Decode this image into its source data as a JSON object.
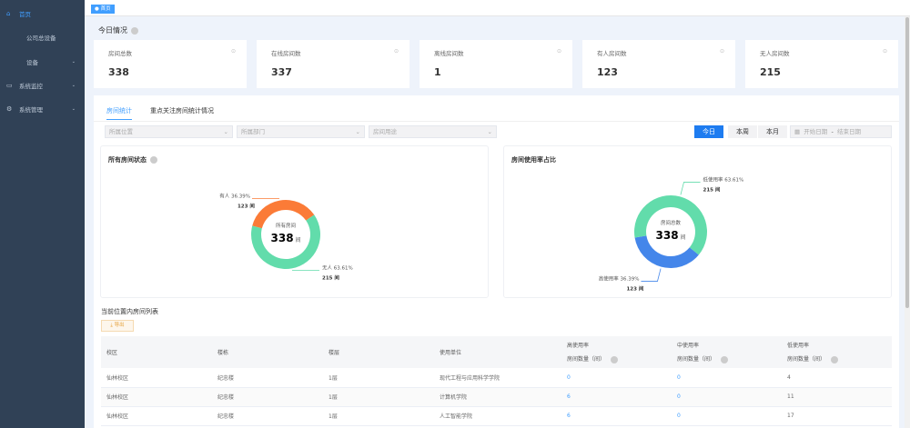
{
  "sidebar": {
    "items": [
      {
        "label": "首页",
        "icon": "home-icon",
        "active": true
      },
      {
        "label": "公司总设备"
      },
      {
        "label": "设备",
        "expandable": true
      },
      {
        "label": "系统监控",
        "icon": "monitor-icon",
        "expandable": true
      },
      {
        "label": "系统管理",
        "icon": "gear-icon",
        "expandable": true
      }
    ]
  },
  "tags": {
    "home": "首页"
  },
  "overview": {
    "title": "今日情况",
    "cards": [
      {
        "label": "房间总数",
        "value": "338"
      },
      {
        "label": "在线房间数",
        "value": "337"
      },
      {
        "label": "离线房间数",
        "value": "1"
      },
      {
        "label": "有人房间数",
        "value": "123"
      },
      {
        "label": "无人房间数",
        "value": "215"
      }
    ]
  },
  "tabs": [
    {
      "label": "房间统计",
      "active": true
    },
    {
      "label": "重点关注房间统计情况"
    }
  ],
  "filters": {
    "location": "所属位置",
    "department": "所属部门",
    "purpose": "房间用途",
    "today": "今日",
    "week": "本周",
    "month": "本月",
    "start_placeholder": "开始日期",
    "sep": "-",
    "end_placeholder": "结束日期"
  },
  "colors": {
    "accent": "#409eff",
    "green": "#62dcab",
    "orange": "#fb7b37",
    "blue": "#4486ea",
    "sidebar": "#304156"
  },
  "chart_data": [
    {
      "type": "pie",
      "title": "所有房间状态",
      "center_label": "所有房间",
      "center_value": "338",
      "center_unit": "间",
      "slices": [
        {
          "name": "有人",
          "percent": "36.39%",
          "count": "123 间",
          "value": 123,
          "color": "#fb7b37"
        },
        {
          "name": "无人",
          "percent": "63.61%",
          "count": "215 间",
          "value": 215,
          "color": "#62dcab"
        }
      ]
    },
    {
      "type": "pie",
      "title": "房间使用率占比",
      "center_label": "房间总数",
      "center_value": "338",
      "center_unit": "间",
      "slices": [
        {
          "name": "高使用率",
          "percent": "36.39%",
          "count": "123 间",
          "value": 123,
          "color": "#4486ea"
        },
        {
          "name": "低使用率",
          "percent": "63.61%",
          "count": "215 间",
          "value": 215,
          "color": "#62dcab"
        }
      ]
    }
  ],
  "table": {
    "title": "当前位置内房间列表",
    "export": "导出",
    "headers": [
      "校区",
      "楼栋",
      "楼层",
      "使用单位",
      "高使用率",
      "中使用率",
      "低使用率"
    ],
    "sub_header": "房间数量（间）",
    "rows": [
      [
        "仙林校区",
        "纪忠楼",
        "1层",
        "现代工程与应用科学学院",
        "0",
        "0",
        "4"
      ],
      [
        "仙林校区",
        "纪忠楼",
        "1层",
        "计算机学院",
        "6",
        "0",
        "11"
      ],
      [
        "仙林校区",
        "纪忠楼",
        "1层",
        "人工智能学院",
        "6",
        "0",
        "17"
      ]
    ]
  }
}
